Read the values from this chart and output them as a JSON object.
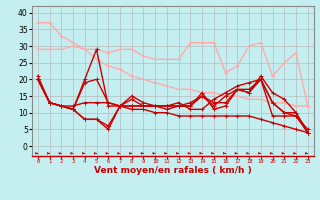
{
  "x": [
    0,
    1,
    2,
    3,
    4,
    5,
    6,
    7,
    8,
    9,
    10,
    11,
    12,
    13,
    14,
    15,
    16,
    17,
    18,
    19,
    20,
    21,
    22,
    23
  ],
  "background_color": "#c5eef0",
  "grid_color": "#b0b0b0",
  "xlabel": "Vent moyen/en rafales ( km/h )",
  "ylim": [
    -3,
    42
  ],
  "yticks": [
    0,
    5,
    10,
    15,
    20,
    25,
    30,
    35,
    40
  ],
  "lines": [
    {
      "y": [
        37,
        37,
        33,
        31,
        29,
        26,
        24,
        23,
        21,
        20,
        19,
        18,
        17,
        17,
        16,
        16,
        15,
        15,
        14,
        14,
        13,
        13,
        12,
        12
      ],
      "color": "#ffaaaa",
      "lw": 1.0,
      "marker": "+"
    },
    {
      "y": [
        29,
        29,
        29,
        30,
        29,
        29,
        28,
        29,
        29,
        27,
        26,
        26,
        26,
        31,
        31,
        31,
        22,
        24,
        30,
        31,
        21,
        25,
        28,
        12
      ],
      "color": "#ffaaaa",
      "lw": 1.0,
      "marker": "+"
    },
    {
      "y": [
        21,
        13,
        12,
        11,
        8,
        8,
        5,
        12,
        14,
        12,
        12,
        11,
        12,
        12,
        16,
        11,
        12,
        17,
        16,
        21,
        16,
        14,
        10,
        4
      ],
      "color": "#cc0000",
      "lw": 1.0,
      "marker": "+"
    },
    {
      "y": [
        20,
        13,
        12,
        11,
        8,
        8,
        6,
        12,
        15,
        13,
        12,
        12,
        12,
        12,
        15,
        12,
        15,
        17,
        17,
        20,
        13,
        10,
        10,
        4
      ],
      "color": "#cc0000",
      "lw": 1.0,
      "marker": "+"
    },
    {
      "y": [
        20,
        13,
        12,
        11,
        19,
        20,
        13,
        12,
        12,
        12,
        12,
        12,
        13,
        11,
        11,
        14,
        16,
        18,
        19,
        20,
        13,
        10,
        9,
        4
      ],
      "color": "#cc0000",
      "lw": 1.0,
      "marker": "+"
    },
    {
      "y": [
        20,
        13,
        12,
        11,
        20,
        29,
        12,
        12,
        12,
        12,
        12,
        12,
        12,
        13,
        15,
        13,
        13,
        17,
        16,
        20,
        9,
        9,
        9,
        5
      ],
      "color": "#cc0000",
      "lw": 1.0,
      "marker": "+"
    },
    {
      "y": [
        20,
        13,
        12,
        12,
        13,
        13,
        13,
        12,
        11,
        11,
        10,
        10,
        9,
        9,
        9,
        9,
        9,
        9,
        9,
        8,
        7,
        6,
        5,
        4
      ],
      "color": "#cc0000",
      "lw": 1.0,
      "marker": "+"
    }
  ],
  "arrow_color": "#cc0000",
  "figsize": [
    3.2,
    2.0
  ],
  "dpi": 100
}
